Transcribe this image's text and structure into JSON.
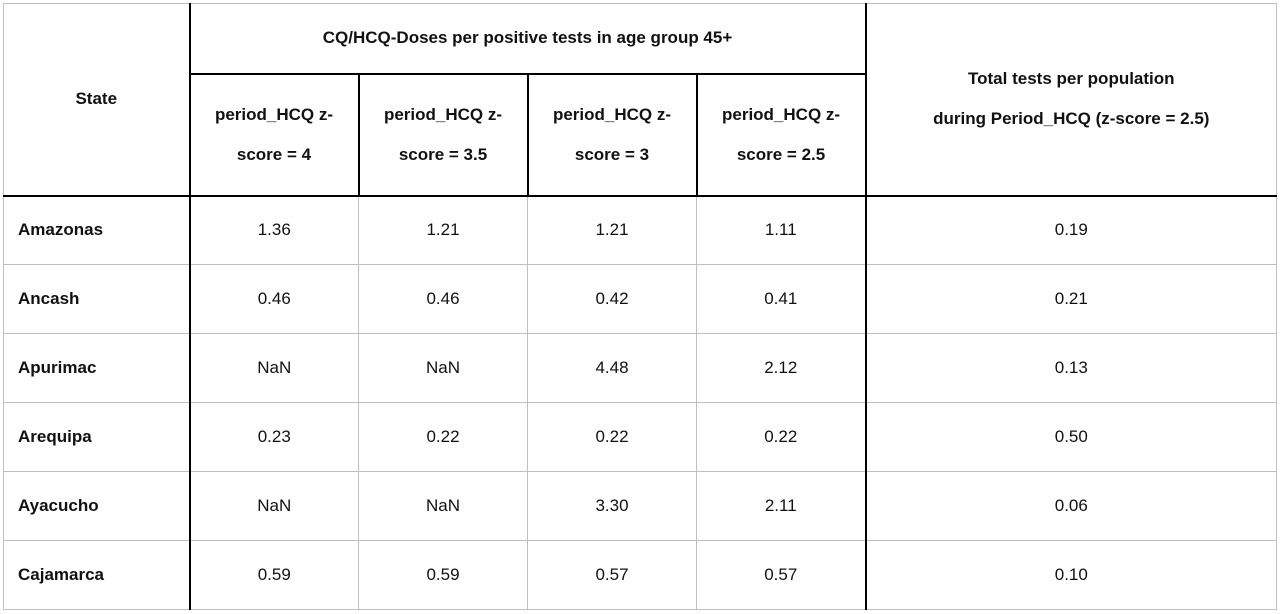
{
  "table": {
    "headers": {
      "state": "State",
      "group": "CQ/HCQ-Doses per positive tests in age group 45+",
      "total_line1": "Total tests per population",
      "total_line2": "during Period_HCQ (z-score = 2.5)",
      "subcols": [
        {
          "line1": "period_HCQ z-",
          "line2": "score = 4"
        },
        {
          "line1": "period_HCQ z-",
          "line2": "score = 3.5"
        },
        {
          "line1": "period_HCQ z-",
          "line2": "score = 3"
        },
        {
          "line1": "period_HCQ z-",
          "line2": "score = 2.5"
        }
      ]
    },
    "rows": [
      {
        "state": "Amazonas",
        "values": [
          "1.36",
          "1.21",
          "1.21",
          "1.11"
        ],
        "total": "0.19"
      },
      {
        "state": "Ancash",
        "values": [
          "0.46",
          "0.46",
          "0.42",
          "0.41"
        ],
        "total": "0.21"
      },
      {
        "state": "Apurimac",
        "values": [
          "NaN",
          "NaN",
          "4.48",
          "2.12"
        ],
        "total": "0.13"
      },
      {
        "state": "Arequipa",
        "values": [
          "0.23",
          "0.22",
          "0.22",
          "0.22"
        ],
        "total": "0.50"
      },
      {
        "state": "Ayacucho",
        "values": [
          "NaN",
          "NaN",
          "3.30",
          "2.11"
        ],
        "total": "0.06"
      },
      {
        "state": "Cajamarca",
        "values": [
          "0.59",
          "0.59",
          "0.57",
          "0.57"
        ],
        "total": "0.10"
      }
    ]
  }
}
